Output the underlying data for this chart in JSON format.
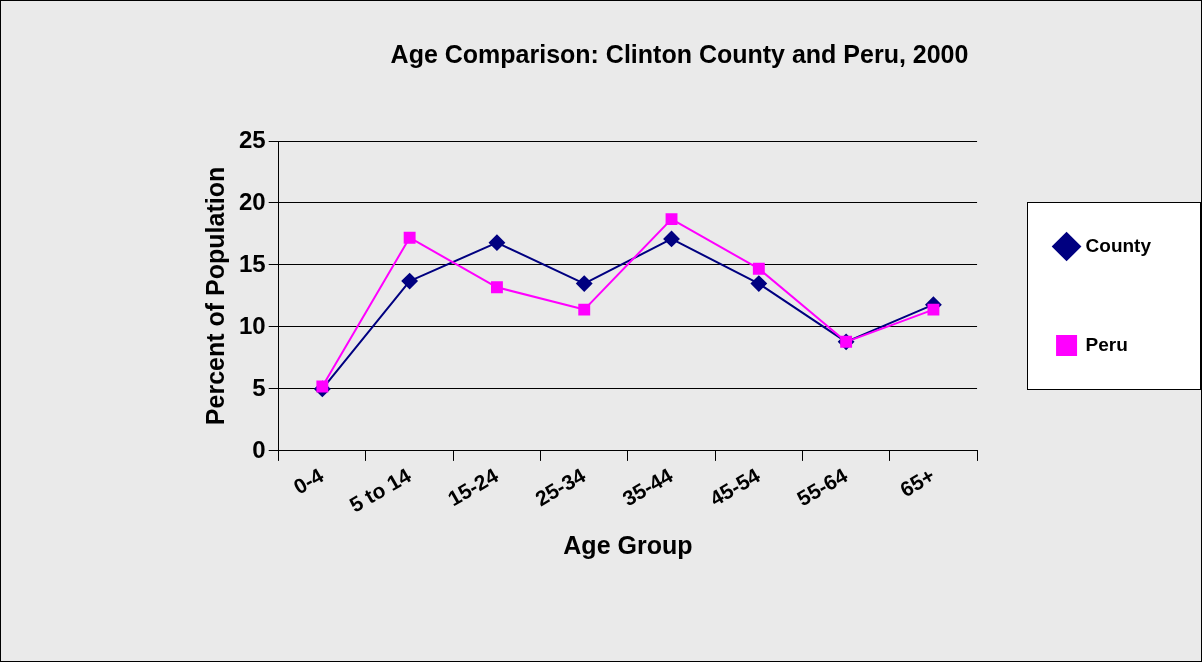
{
  "chart_data": {
    "type": "line",
    "title": "Age Comparison: Clinton County and Peru, 2000",
    "xlabel": "Age Group",
    "ylabel": "Percent of Population",
    "categories": [
      "0-4",
      "5 to 14",
      "15-24",
      "25-34",
      "35-44",
      "45-54",
      "55-64",
      "65+"
    ],
    "series": [
      {
        "name": "County",
        "color": "#000080",
        "marker": "diamond",
        "values": [
          5.0,
          13.7,
          16.8,
          13.5,
          17.1,
          13.5,
          8.8,
          11.8
        ]
      },
      {
        "name": "Peru",
        "color": "#ff00ff",
        "marker": "square",
        "values": [
          5.2,
          17.2,
          13.2,
          11.4,
          18.7,
          14.7,
          8.8,
          11.4
        ]
      }
    ],
    "ylim": [
      0,
      25
    ],
    "yticks": [
      0,
      5,
      10,
      15,
      20,
      25
    ],
    "grid": "y",
    "legend": "right",
    "line_style": "solid"
  }
}
